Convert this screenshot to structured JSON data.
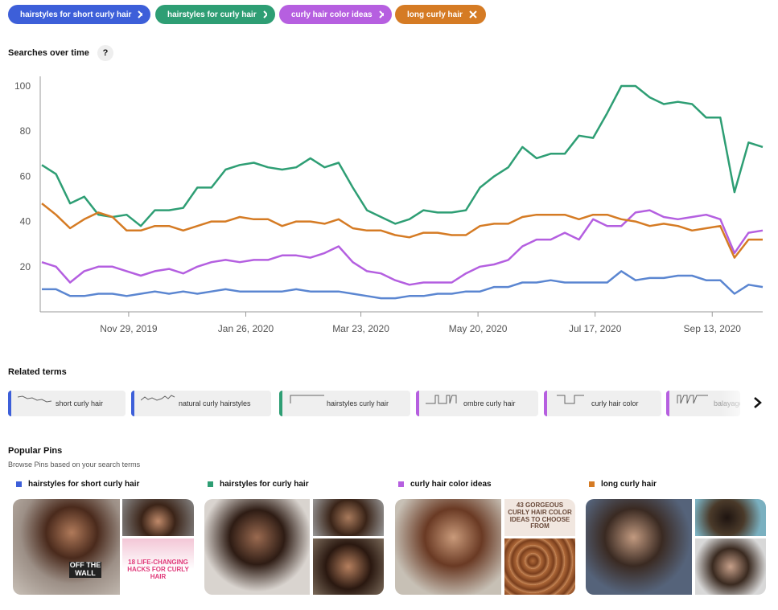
{
  "filters": [
    "hairstyles for short curly hair",
    "hairstyles for curly hair",
    "curly hair color ideas",
    "long curly hair"
  ],
  "help": "?",
  "chart_data": {
    "type": "line",
    "title": "Searches over time",
    "x": [
      "2019-10-17",
      "2019-10-24",
      "2019-10-31",
      "2019-11-07",
      "2019-11-14",
      "2019-11-21",
      "2019-11-28",
      "2019-12-05",
      "2019-12-12",
      "2019-12-19",
      "2019-12-26",
      "2020-01-02",
      "2020-01-09",
      "2020-01-16",
      "2020-01-23",
      "2020-01-30",
      "2020-02-06",
      "2020-02-13",
      "2020-02-20",
      "2020-02-27",
      "2020-03-05",
      "2020-03-12",
      "2020-03-19",
      "2020-03-26",
      "2020-04-02",
      "2020-04-09",
      "2020-04-16",
      "2020-04-23",
      "2020-04-30",
      "2020-05-07",
      "2020-05-14",
      "2020-05-21",
      "2020-05-28",
      "2020-06-04",
      "2020-06-11",
      "2020-06-18",
      "2020-06-25",
      "2020-07-02",
      "2020-07-09",
      "2020-07-16",
      "2020-07-23",
      "2020-07-30",
      "2020-08-06",
      "2020-08-13",
      "2020-08-20",
      "2020-08-27",
      "2020-09-03",
      "2020-09-10",
      "2020-09-17",
      "2020-09-24",
      "2020-10-01",
      "2020-10-08"
    ],
    "series": [
      {
        "name": "hairstyles for short curly hair",
        "color": "#5b86d1",
        "values": [
          10,
          10,
          7,
          7,
          8,
          8,
          7,
          8,
          9,
          8,
          9,
          8,
          9,
          10,
          9,
          9,
          9,
          9,
          10,
          9,
          9,
          9,
          8,
          7,
          6,
          6,
          7,
          7,
          8,
          8,
          9,
          9,
          11,
          11,
          13,
          13,
          14,
          13,
          13,
          13,
          13,
          18,
          14,
          15,
          15,
          16,
          16,
          14,
          14,
          8,
          12,
          11
        ]
      },
      {
        "name": "hairstyles for curly hair",
        "color": "#2e9e74",
        "values": [
          65,
          61,
          48,
          51,
          43,
          42,
          43,
          38,
          45,
          45,
          46,
          55,
          55,
          63,
          65,
          66,
          64,
          63,
          64,
          68,
          64,
          66,
          55,
          45,
          42,
          39,
          41,
          45,
          44,
          44,
          45,
          55,
          60,
          64,
          73,
          68,
          70,
          70,
          78,
          77,
          88,
          100,
          100,
          95,
          92,
          93,
          92,
          86,
          86,
          53,
          75,
          73
        ]
      },
      {
        "name": "curly hair color ideas",
        "color": "#b45fe0",
        "values": [
          22,
          20,
          13,
          18,
          20,
          20,
          18,
          16,
          18,
          19,
          17,
          20,
          22,
          23,
          22,
          23,
          23,
          25,
          25,
          24,
          26,
          29,
          22,
          18,
          17,
          14,
          12,
          13,
          13,
          13,
          17,
          20,
          21,
          23,
          29,
          32,
          32,
          35,
          32,
          41,
          38,
          38,
          44,
          45,
          42,
          41,
          42,
          43,
          41,
          26,
          35,
          36
        ]
      },
      {
        "name": "long curly hair",
        "color": "#d57b24",
        "values": [
          48,
          43,
          37,
          41,
          44,
          42,
          36,
          36,
          38,
          38,
          36,
          38,
          40,
          40,
          42,
          41,
          41,
          38,
          40,
          40,
          39,
          41,
          37,
          36,
          36,
          34,
          33,
          35,
          35,
          34,
          34,
          38,
          39,
          39,
          42,
          43,
          43,
          43,
          41,
          43,
          43,
          41,
          40,
          38,
          39,
          38,
          36,
          37,
          38,
          24,
          32,
          32
        ]
      }
    ],
    "xlim": [
      "2019-10-17",
      "2020-10-08"
    ],
    "xticks": [
      {
        "value": "2019-11-29",
        "label": "Nov 29, 2019"
      },
      {
        "value": "2020-01-26",
        "label": "Jan 26, 2020"
      },
      {
        "value": "2020-03-23",
        "label": "Mar 23, 2020"
      },
      {
        "value": "2020-05-20",
        "label": "May 20, 2020"
      },
      {
        "value": "2020-07-17",
        "label": "Jul 17, 2020"
      },
      {
        "value": "2020-09-13",
        "label": "Sep 13, 2020"
      }
    ],
    "ylim": [
      0,
      100
    ],
    "yticks": [
      20,
      40,
      60,
      80,
      100
    ],
    "grid": false
  },
  "related_terms": {
    "title": "Related terms",
    "items": [
      "short curly hair",
      "natural curly hairstyles",
      "hairstyles curly hair",
      "ombre curly hair",
      "curly hair color",
      "balayage"
    ]
  },
  "popular_pins": {
    "title": "Popular Pins",
    "subtitle": "Browse Pins based on your search terms",
    "overlays": [
      "OFF THE WALL",
      "18 LIFE-CHANGING HACKS FOR CURLY HAIR",
      "43 GORGEOUS CURLY HAIR COLOR IDEAS TO CHOOSE FROM"
    ]
  }
}
